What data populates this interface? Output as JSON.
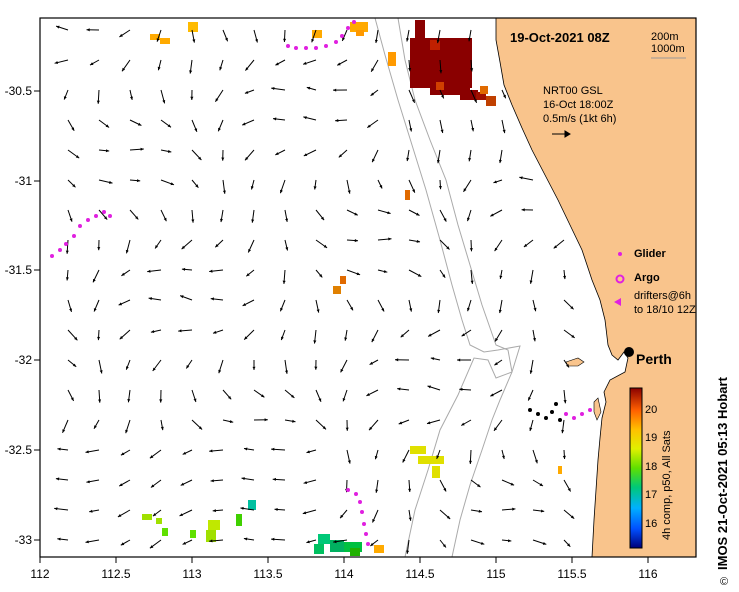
{
  "map": {
    "date_title": "19-Oct-2021 08Z",
    "lon_min": 112,
    "lon_max": 116.3,
    "lat_min": -33.1,
    "lat_max": -30.05,
    "x_ticks": [
      "112",
      "112.5",
      "113",
      "113.5",
      "114",
      "114.5",
      "115",
      "115.5",
      "116"
    ],
    "y_ticks": [
      "-30.5",
      "-31",
      "-31.5",
      "-32",
      "-32.5",
      "-33"
    ],
    "colors": {
      "land": "#f9c48c",
      "ocean": "#ffffff",
      "isobath": "#aaaaaa",
      "glider": "#e020e0"
    }
  },
  "isobath_legend": {
    "line1": "200m",
    "line2": "1000m"
  },
  "current_legend": {
    "line1": "NRT00 GSL",
    "line2": "16-Oct 18:00Z",
    "line3": "0.5m/s (1kt 6h)"
  },
  "markers_legend": {
    "glider": "Glider",
    "argo": "Argo",
    "drifters_1": "drifters@6h",
    "drifters_2": "to 18/10 12Z"
  },
  "city": {
    "name": "Perth",
    "lon": 115.86,
    "lat": -31.95
  },
  "colorbar": {
    "ticks": [
      "20",
      "19",
      "18",
      "17",
      "16"
    ],
    "min": 15.5,
    "max": 20.5,
    "label": "4h comp, p50, All Sats"
  },
  "credit": "IMOS 21-Oct-2021 05:13 Hobart",
  "copyright_symbol": "©"
}
